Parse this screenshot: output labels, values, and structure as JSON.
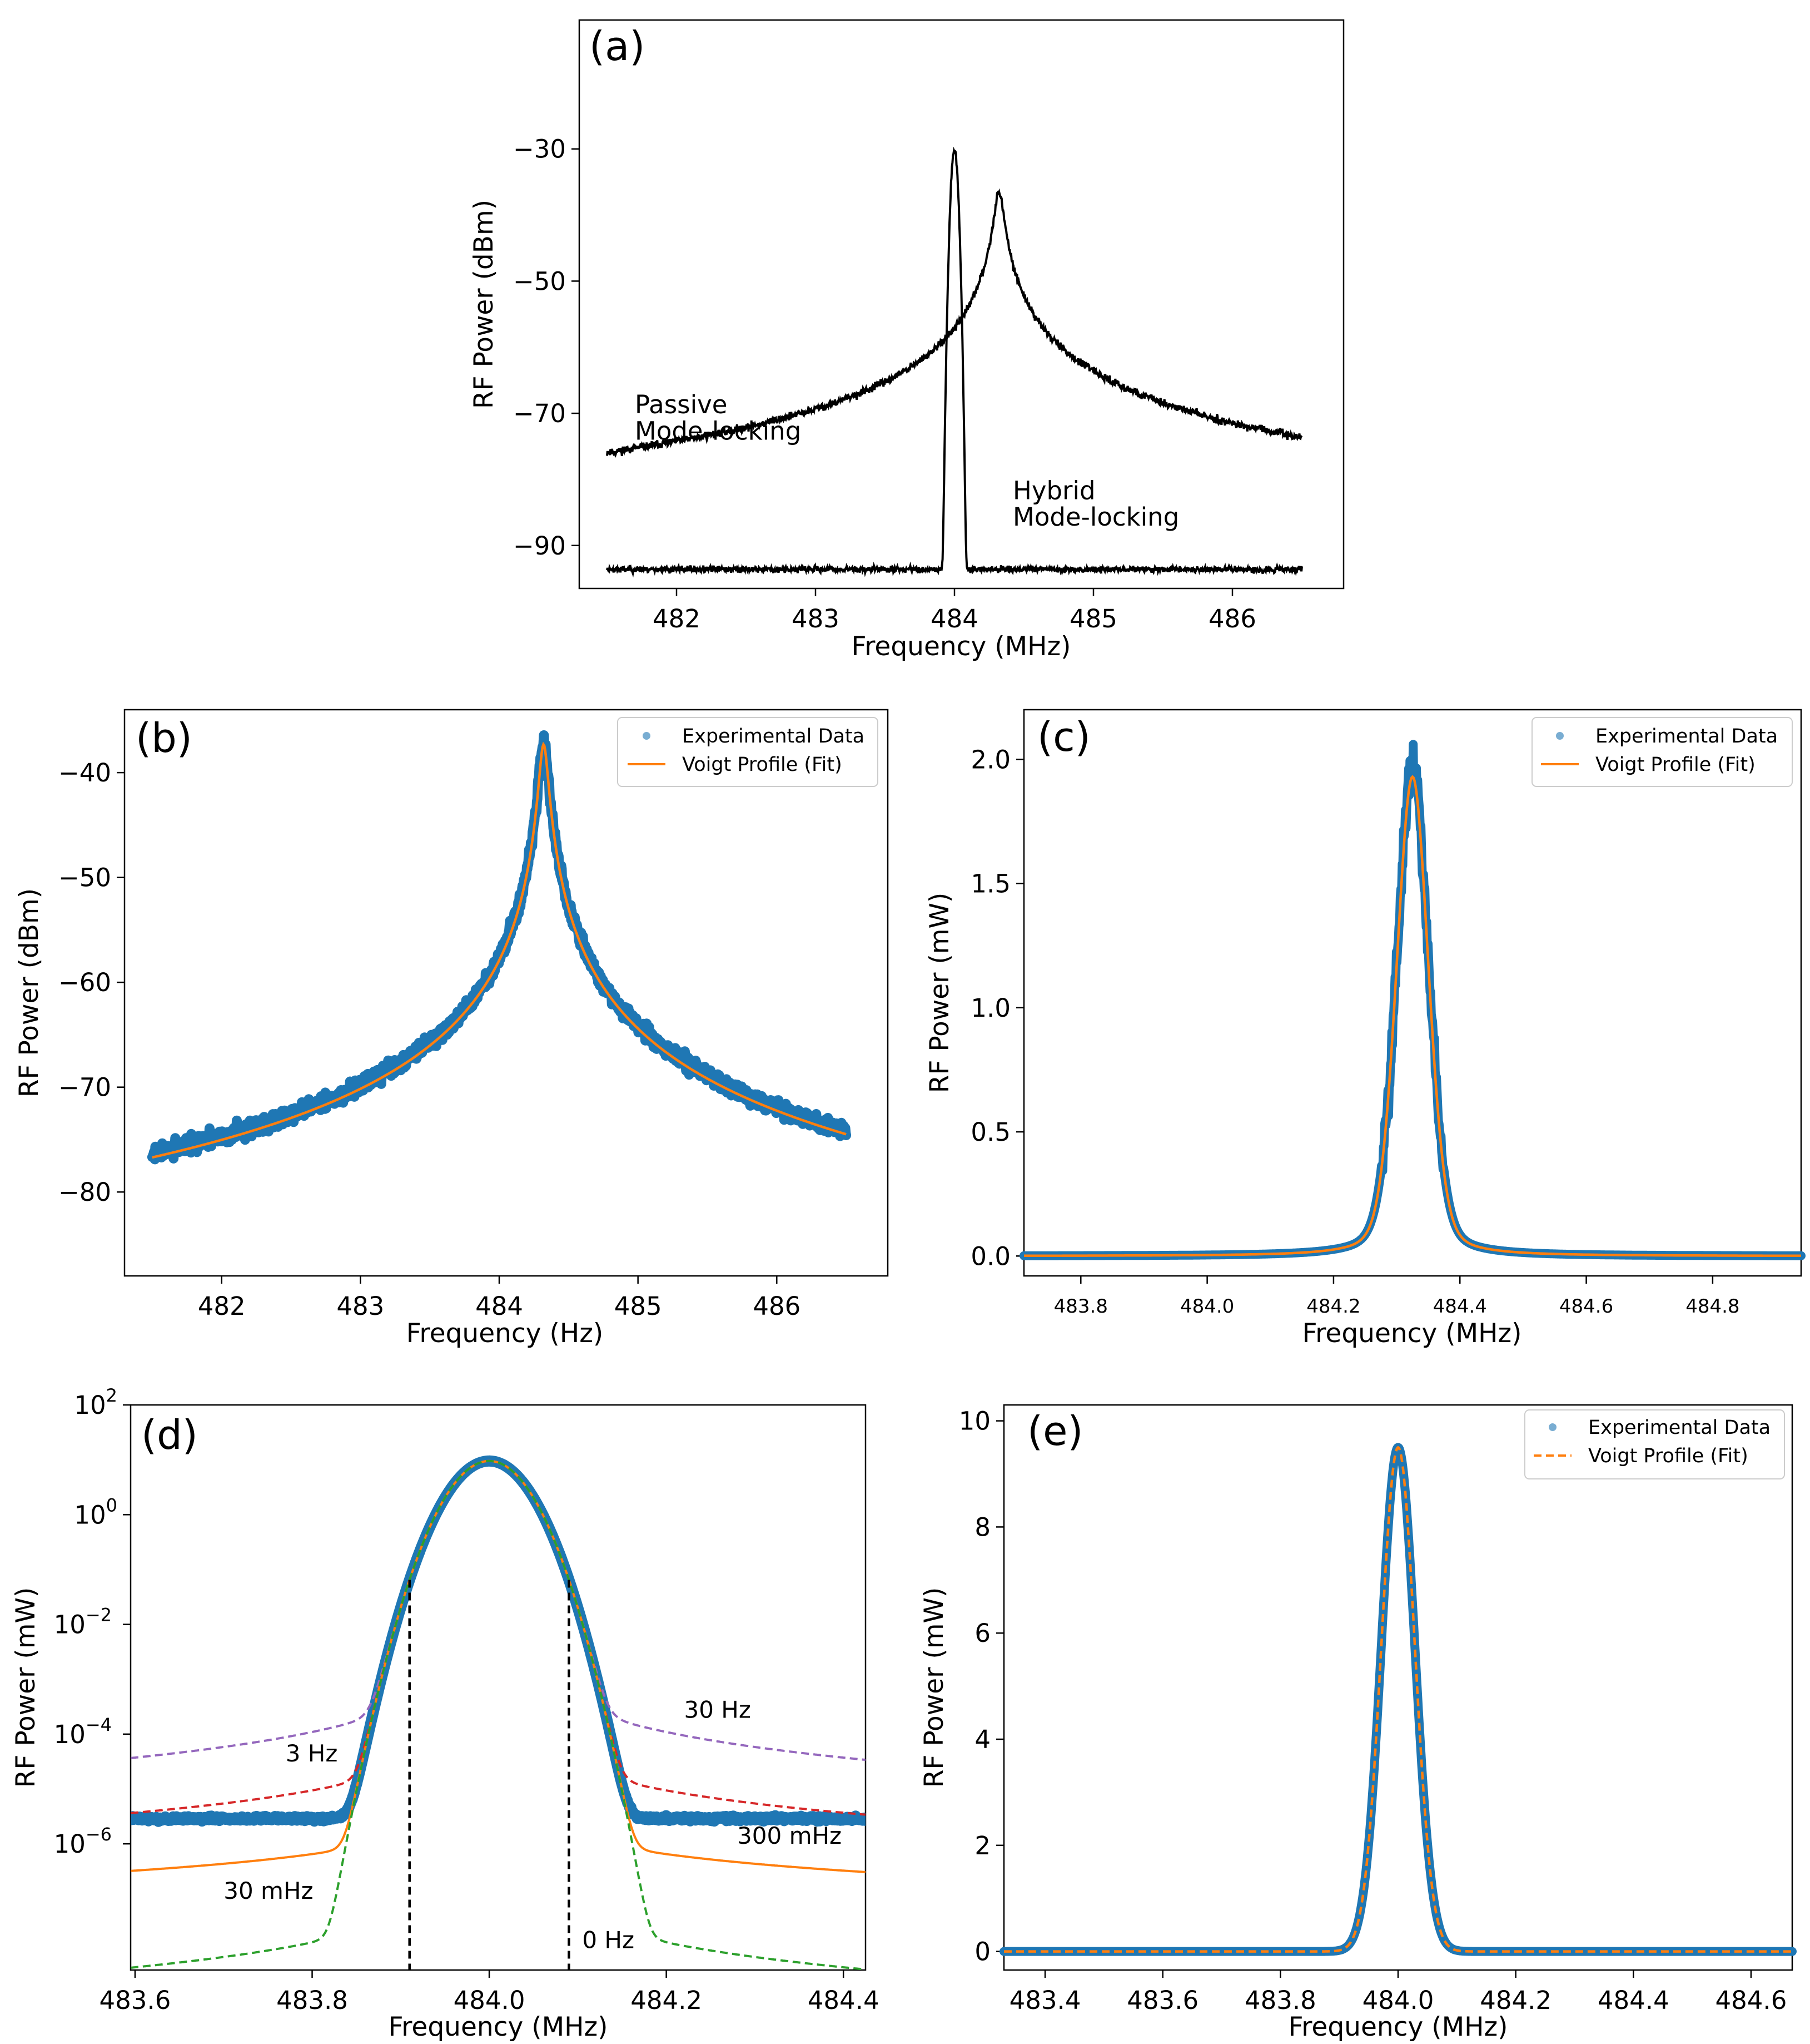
{
  "figure": {
    "colors": {
      "data_blue": "#1f77b4",
      "fit_orange": "#ff7f0e",
      "green": "#2ca02c",
      "red": "#d62728",
      "purple": "#9467bd",
      "black": "#000000"
    }
  },
  "chart_data": [
    {
      "id": "a",
      "panel_label": "(a)",
      "type": "line",
      "xlabel": "Frequency (MHz)",
      "ylabel": "RF Power (dBm)",
      "xlim": [
        481.3,
        486.8
      ],
      "ylim": [
        -96.5,
        -10.5
      ],
      "xticks": [
        482,
        483,
        484,
        485,
        486
      ],
      "xtick_labels": [
        "482",
        "483",
        "484",
        "485",
        "486"
      ],
      "yticks": [
        -30,
        -50,
        -70,
        -90
      ],
      "ytick_labels": [
        "−30",
        "−50",
        "−70",
        "−90"
      ],
      "series": [
        {
          "name": "Passive Mode-locking",
          "color": "#000000",
          "model": "lorentzian-dB",
          "center": 484.32,
          "peak_dbm": -36.5,
          "floor_dbm": -95,
          "halfwidth_mhz": 0.03,
          "range": [
            481.5,
            486.5
          ]
        },
        {
          "name": "Hybrid Mode-locking",
          "color": "#000000",
          "model": "narrow-peak-dB",
          "center": 484.0,
          "peak_dbm": -30,
          "floor_dbm": -93.6,
          "range": [
            481.5,
            486.5
          ]
        }
      ],
      "annotations": [
        {
          "text": "Passive",
          "x": 481.7,
          "y": -70
        },
        {
          "text": "Mode-locking",
          "x": 481.7,
          "y": -74
        },
        {
          "text": "Hybrid",
          "x": 484.42,
          "y": -83
        },
        {
          "text": "Mode-locking",
          "x": 484.42,
          "y": -87
        }
      ]
    },
    {
      "id": "b",
      "panel_label": "(b)",
      "type": "scatter",
      "xlabel": "Frequency (Hz)",
      "ylabel": "RF Power (dBm)",
      "xlim": [
        481.3,
        486.8
      ],
      "ylim": [
        -88,
        -34
      ],
      "xticks": [
        482,
        483,
        484,
        485,
        486
      ],
      "xtick_labels": [
        "482",
        "483",
        "484",
        "485",
        "486"
      ],
      "yticks": [
        -40,
        -50,
        -60,
        -70,
        -80
      ],
      "ytick_labels": [
        "−40",
        "−50",
        "−60",
        "−70",
        "−80"
      ],
      "series": [
        {
          "name": "Experimental Data",
          "color": "#1f77b4",
          "center": 484.32,
          "peak_dbm": -37,
          "floor_dbm": -95,
          "halfwidth_mhz": 0.03,
          "range": [
            481.5,
            486.5
          ]
        },
        {
          "name": "Voigt Profile (Fit)",
          "color": "#ff7f0e",
          "center": 484.32,
          "peak_dbm": -37.3,
          "floor_dbm": -95,
          "halfwidth_mhz": 0.03,
          "range": [
            481.5,
            486.5
          ]
        }
      ],
      "legend": {
        "location": "upper right",
        "entries": [
          "Experimental Data",
          "Voigt Profile (Fit)"
        ]
      }
    },
    {
      "id": "c",
      "panel_label": "(c)",
      "type": "scatter",
      "xlabel": "Frequency (MHz)",
      "ylabel": "RF Power (mW)",
      "xlim": [
        483.71,
        484.94
      ],
      "ylim": [
        -0.08,
        2.2
      ],
      "xticks": [
        483.8,
        484.0,
        484.2,
        484.4,
        484.6,
        484.8
      ],
      "xtick_labels": [
        "483.8",
        "484.0",
        "484.2",
        "484.4",
        "484.6",
        "484.8"
      ],
      "yticks": [
        0.0,
        0.5,
        1.0,
        1.5,
        2.0
      ],
      "ytick_labels": [
        "0.0",
        "0.5",
        "1.0",
        "1.5",
        "2.0"
      ],
      "series": [
        {
          "name": "Experimental Data",
          "color": "#1f77b4",
          "center": 484.325,
          "peak_mw": 2.1
        },
        {
          "name": "Voigt Profile (Fit)",
          "color": "#ff7f0e",
          "center": 484.325,
          "peak_mw": 1.93
        }
      ],
      "legend": {
        "location": "upper right",
        "entries": [
          "Experimental Data",
          "Voigt Profile (Fit)"
        ]
      }
    },
    {
      "id": "d",
      "panel_label": "(d)",
      "type": "line",
      "yscale": "log",
      "xlabel": "Frequency (MHz)",
      "ylabel": "RF Power (mW)",
      "xlim": [
        483.595,
        484.425
      ],
      "ylim_log10": [
        -8.3,
        2.0
      ],
      "xticks": [
        483.6,
        483.8,
        484.0,
        484.2,
        484.4
      ],
      "xtick_labels": [
        "483.6",
        "483.8",
        "484.0",
        "484.2",
        "484.4"
      ],
      "yticks_log10": [
        2,
        0,
        -2,
        -4,
        -6
      ],
      "ytick_labels": [
        {
          "base": "10",
          "exp": "2"
        },
        {
          "base": "10",
          "exp": "0"
        },
        {
          "base": "10",
          "exp": "−2"
        },
        {
          "base": "10",
          "exp": "−4"
        },
        {
          "base": "10",
          "exp": "−6"
        }
      ],
      "peak_mw": 9.5,
      "series": [
        {
          "name": "30 Hz",
          "color": "#9467bd",
          "style": "dashed"
        },
        {
          "name": "3 Hz",
          "color": "#d62728",
          "style": "dashed"
        },
        {
          "name": "300 mHz",
          "color": "#ff7f0e",
          "style": "solid"
        },
        {
          "name": "30 mHz",
          "color": "#ff7f0e",
          "style": "solid"
        },
        {
          "name": "0 Hz",
          "color": "#2ca02c",
          "style": "dashed"
        },
        {
          "name": "Experimental Data",
          "color": "#1f77b4",
          "style": "markers"
        }
      ],
      "vlines": [
        483.91,
        484.09
      ],
      "annotations": [
        {
          "text": "30 Hz",
          "x": 484.22,
          "y_log10": -3.7
        },
        {
          "text": "3 Hz",
          "x": 483.77,
          "y_log10": -4.5
        },
        {
          "text": "300 mHz",
          "x": 484.28,
          "y_log10": -6.0
        },
        {
          "text": "30 mHz",
          "x": 483.7,
          "y_log10": -7.0
        },
        {
          "text": "0 Hz",
          "x": 484.105,
          "y_log10": -7.9
        }
      ]
    },
    {
      "id": "e",
      "panel_label": "(e)",
      "type": "scatter",
      "xlabel": "Frequency (MHz)",
      "ylabel": "RF Power (mW)",
      "xlim": [
        483.33,
        484.67
      ],
      "ylim": [
        -0.35,
        10.3
      ],
      "xticks": [
        483.4,
        483.6,
        483.8,
        484.0,
        484.2,
        484.4,
        484.6
      ],
      "xtick_labels": [
        "483.4",
        "483.6",
        "483.8",
        "484.0",
        "484.2",
        "484.4",
        "484.6"
      ],
      "yticks": [
        0,
        2,
        4,
        6,
        8,
        10
      ],
      "ytick_labels": [
        "0",
        "2",
        "4",
        "6",
        "8",
        "10"
      ],
      "series": [
        {
          "name": "Experimental Data",
          "color": "#1f77b4",
          "center": 484.0,
          "peak_mw": 9.5
        },
        {
          "name": "Voigt Profile (Fit)",
          "color": "#ff7f0e",
          "center": 484.0,
          "peak_mw": 9.5,
          "style": "dashed"
        }
      ],
      "legend": {
        "location": "upper right",
        "entries": [
          "Experimental Data",
          "Voigt Profile (Fit)"
        ]
      }
    }
  ]
}
